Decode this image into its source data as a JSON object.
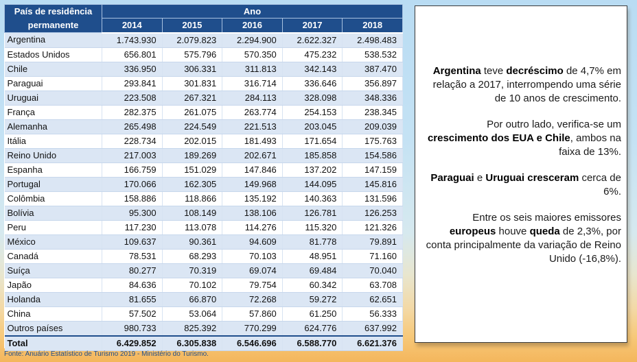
{
  "table": {
    "country_header": "País de residência permanente",
    "year_group_header": "Ano",
    "years": [
      "2014",
      "2015",
      "2016",
      "2017",
      "2018"
    ],
    "rows": [
      {
        "country": "Argentina",
        "values": [
          "1.743.930",
          "2.079.823",
          "2.294.900",
          "2.622.327",
          "2.498.483"
        ]
      },
      {
        "country": "Estados Unidos",
        "values": [
          "656.801",
          "575.796",
          "570.350",
          "475.232",
          "538.532"
        ]
      },
      {
        "country": "Chile",
        "values": [
          "336.950",
          "306.331",
          "311.813",
          "342.143",
          "387.470"
        ]
      },
      {
        "country": "Paraguai",
        "values": [
          "293.841",
          "301.831",
          "316.714",
          "336.646",
          "356.897"
        ]
      },
      {
        "country": "Uruguai",
        "values": [
          "223.508",
          "267.321",
          "284.113",
          "328.098",
          "348.336"
        ]
      },
      {
        "country": "França",
        "values": [
          "282.375",
          "261.075",
          "263.774",
          "254.153",
          "238.345"
        ]
      },
      {
        "country": "Alemanha",
        "values": [
          "265.498",
          "224.549",
          "221.513",
          "203.045",
          "209.039"
        ]
      },
      {
        "country": "Itália",
        "values": [
          "228.734",
          "202.015",
          "181.493",
          "171.654",
          "175.763"
        ]
      },
      {
        "country": "Reino Unido",
        "values": [
          "217.003",
          "189.269",
          "202.671",
          "185.858",
          "154.586"
        ]
      },
      {
        "country": "Espanha",
        "values": [
          "166.759",
          "151.029",
          "147.846",
          "137.202",
          "147.159"
        ]
      },
      {
        "country": "Portugal",
        "values": [
          "170.066",
          "162.305",
          "149.968",
          "144.095",
          "145.816"
        ]
      },
      {
        "country": "Colômbia",
        "values": [
          "158.886",
          "118.866",
          "135.192",
          "140.363",
          "131.596"
        ]
      },
      {
        "country": "Bolívia",
        "values": [
          "95.300",
          "108.149",
          "138.106",
          "126.781",
          "126.253"
        ]
      },
      {
        "country": "Peru",
        "values": [
          "117.230",
          "113.078",
          "114.276",
          "115.320",
          "121.326"
        ]
      },
      {
        "country": "México",
        "values": [
          "109.637",
          "90.361",
          "94.609",
          "81.778",
          "79.891"
        ]
      },
      {
        "country": "Canadá",
        "values": [
          "78.531",
          "68.293",
          "70.103",
          "48.951",
          "71.160"
        ]
      },
      {
        "country": "Suíça",
        "values": [
          "80.277",
          "70.319",
          "69.074",
          "69.484",
          "70.040"
        ]
      },
      {
        "country": "Japão",
        "values": [
          "84.636",
          "70.102",
          "79.754",
          "60.342",
          "63.708"
        ]
      },
      {
        "country": "Holanda",
        "values": [
          "81.655",
          "66.870",
          "72.268",
          "59.272",
          "62.651"
        ]
      },
      {
        "country": "China",
        "values": [
          "57.502",
          "53.064",
          "57.860",
          "61.250",
          "56.333"
        ]
      },
      {
        "country": "Outros países",
        "values": [
          "980.733",
          "825.392",
          "770.299",
          "624.776",
          "637.992"
        ]
      }
    ],
    "total": {
      "country": "Total",
      "values": [
        "6.429.852",
        "6.305.838",
        "6.546.696",
        "6.588.770",
        "6.621.376"
      ]
    }
  },
  "source_text": "Fonte: Anuário Estatístico de Turismo 2019 - Ministério do Turismo.",
  "notes": [
    [
      {
        "text": "Argentina",
        "bold": true
      },
      {
        "text": " teve ",
        "bold": false
      },
      {
        "text": "decréscimo",
        "bold": true
      },
      {
        "text": " de 4,7% em relação a 2017, interrompendo uma série de 10 anos de crescimento.",
        "bold": false
      }
    ],
    [
      {
        "text": "Por outro lado, verifica-se um ",
        "bold": false
      },
      {
        "text": "crescimento dos EUA e Chile",
        "bold": true
      },
      {
        "text": ", ambos na faixa de 13%.",
        "bold": false
      }
    ],
    [
      {
        "text": "Paraguai",
        "bold": true
      },
      {
        "text": " e ",
        "bold": false
      },
      {
        "text": "Uruguai cresceram",
        "bold": true
      },
      {
        "text": " cerca de 6%.",
        "bold": false
      }
    ],
    [
      {
        "text": "Entre os seis maiores emissores ",
        "bold": false
      },
      {
        "text": "europeus",
        "bold": true
      },
      {
        "text": " houve ",
        "bold": false
      },
      {
        "text": "queda",
        "bold": true
      },
      {
        "text": " de 2,3%, por conta principalmente da variação de Reino Unido (-16,8%).",
        "bold": false
      }
    ]
  ],
  "colors": {
    "header_bg": "#1f4e8c",
    "row_stripe": "#dbe6f4",
    "source_text": "#1f4e8c"
  }
}
